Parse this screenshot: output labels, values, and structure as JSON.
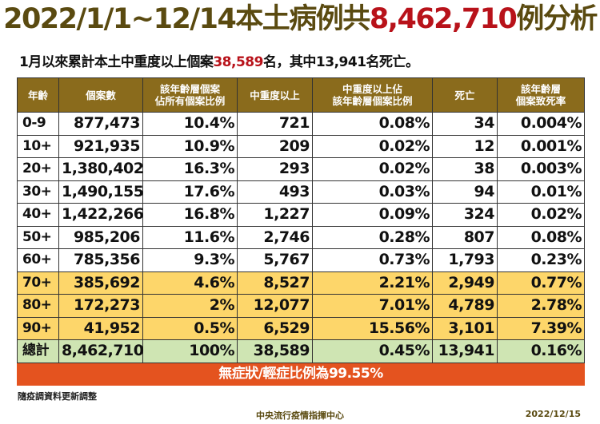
{
  "title": {
    "prefix": "2022/1/1~12/14本土病例共",
    "highlight": "8,462,710",
    "suffix": "例分析"
  },
  "subtitle": {
    "prefix": "1月以來累計本土中重度以上個案",
    "highlight": "38,589",
    "suffix": "名，其中13,941名死亡。"
  },
  "colors": {
    "header": "#8a6b1c",
    "highlight_rows": "#fdd66a",
    "total_row": "#cfe5b3",
    "note_bar": "#e4531f",
    "title": "#5a4a10",
    "accent_red": "#b8121a"
  },
  "table": {
    "headers": [
      "年齡",
      "個案數",
      "該年齡層個案\n佔所有個案比例",
      "中重度以上",
      "中重度以上佔\n該年齡層個案比例",
      "死亡",
      "該年齡層\n個案致死率"
    ],
    "rows": [
      [
        "0-9",
        "877,473",
        "10.4%",
        "721",
        "0.08%",
        "34",
        "0.004%"
      ],
      [
        "10+",
        "921,935",
        "10.9%",
        "209",
        "0.02%",
        "12",
        "0.001%"
      ],
      [
        "20+",
        "1,380,402",
        "16.3%",
        "293",
        "0.02%",
        "38",
        "0.003%"
      ],
      [
        "30+",
        "1,490,155",
        "17.6%",
        "493",
        "0.03%",
        "94",
        "0.01%"
      ],
      [
        "40+",
        "1,422,266",
        "16.8%",
        "1,227",
        "0.09%",
        "324",
        "0.02%"
      ],
      [
        "50+",
        "985,206",
        "11.6%",
        "2,746",
        "0.28%",
        "807",
        "0.08%"
      ],
      [
        "60+",
        "785,356",
        "9.3%",
        "5,767",
        "0.73%",
        "1,793",
        "0.23%"
      ],
      [
        "70+",
        "385,692",
        "4.6%",
        "8,527",
        "2.21%",
        "2,949",
        "0.77%"
      ],
      [
        "80+",
        "172,273",
        "2%",
        "12,077",
        "7.01%",
        "4,789",
        "2.78%"
      ],
      [
        "90+",
        "41,952",
        "0.5%",
        "6,529",
        "15.56%",
        "3,101",
        "7.39%"
      ]
    ],
    "total": [
      "總計",
      "8,462,710",
      "100%",
      "38,589",
      "0.45%",
      "13,941",
      "0.16%"
    ],
    "note": "無症狀/輕症比例為99.55%"
  },
  "footer": {
    "left": "隨疫調資料更新調整",
    "center": "中央流行疫情指揮中心",
    "date": "2022/12/15"
  }
}
